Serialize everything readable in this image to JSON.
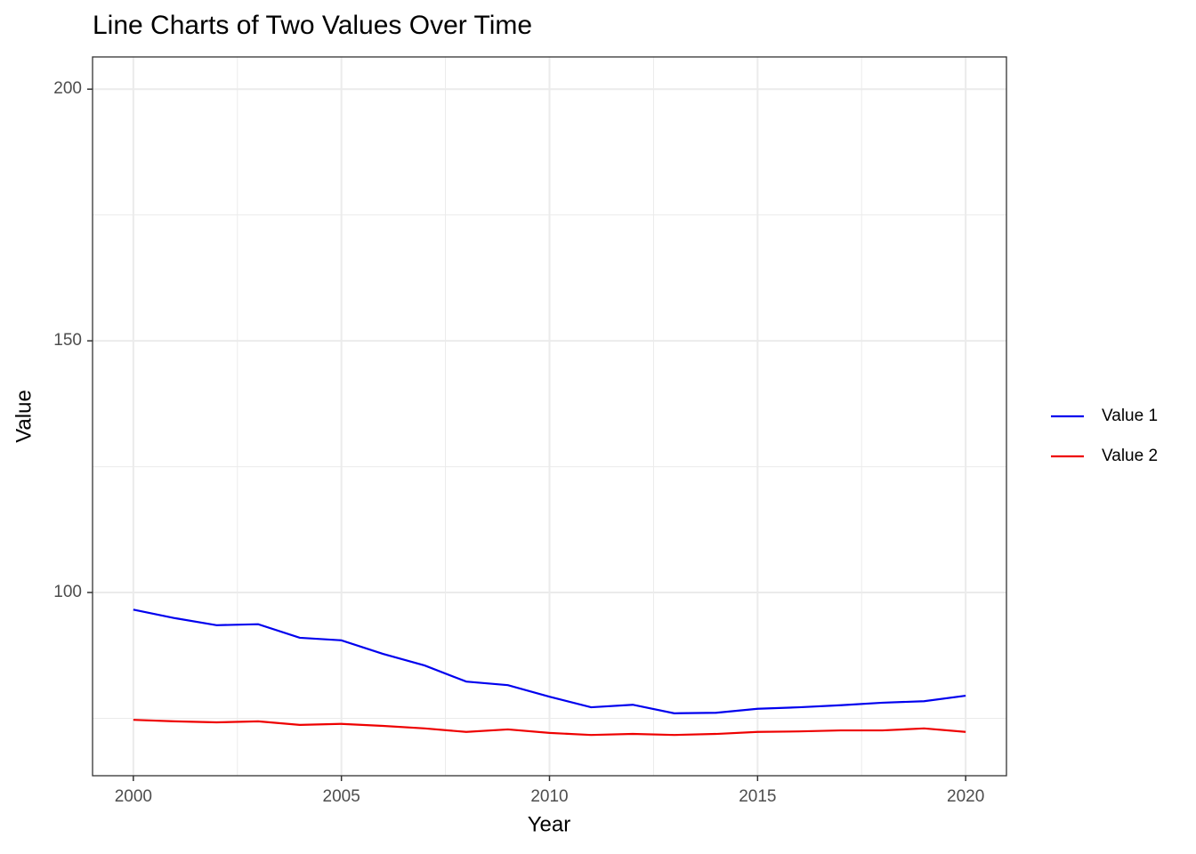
{
  "chart_data": {
    "type": "line",
    "title": "Line Charts of Two Values Over Time",
    "x_label": "Year",
    "y_label": "Value",
    "x": [
      2000,
      2001,
      2002,
      2003,
      2004,
      2005,
      2006,
      2007,
      2008,
      2009,
      2010,
      2011,
      2012,
      2013,
      2014,
      2015,
      2016,
      2017,
      2018,
      2019,
      2020
    ],
    "series": [
      {
        "name": "Value 1",
        "color": "#0000ee",
        "values": [
          96.6,
          94.9,
          93.5,
          93.7,
          91.0,
          90.5,
          87.8,
          85.5,
          82.3,
          81.6,
          79.3,
          77.2,
          77.7,
          76.0,
          76.1,
          76.9,
          77.2,
          77.6,
          78.1,
          78.4,
          79.5
        ]
      },
      {
        "name": "Value 2",
        "color": "#ee0000",
        "values": [
          74.7,
          74.4,
          74.2,
          74.4,
          73.7,
          73.9,
          73.5,
          73.0,
          72.3,
          72.8,
          72.1,
          71.7,
          71.9,
          71.7,
          71.9,
          72.3,
          72.4,
          72.6,
          72.6,
          73.0,
          72.3
        ]
      }
    ],
    "xlim": [
      1999.02,
      2020.98
    ],
    "ylim": [
      63.6,
      206.4
    ],
    "xticks": [
      2000,
      2005,
      2010,
      2015,
      2020
    ],
    "yticks": [
      100,
      150,
      200
    ],
    "minor_xticks": [
      2002.5,
      2007.5,
      2012.5,
      2017.5
    ],
    "minor_yticks": [
      75,
      125,
      175
    ],
    "grid": true,
    "legend": "right"
  }
}
